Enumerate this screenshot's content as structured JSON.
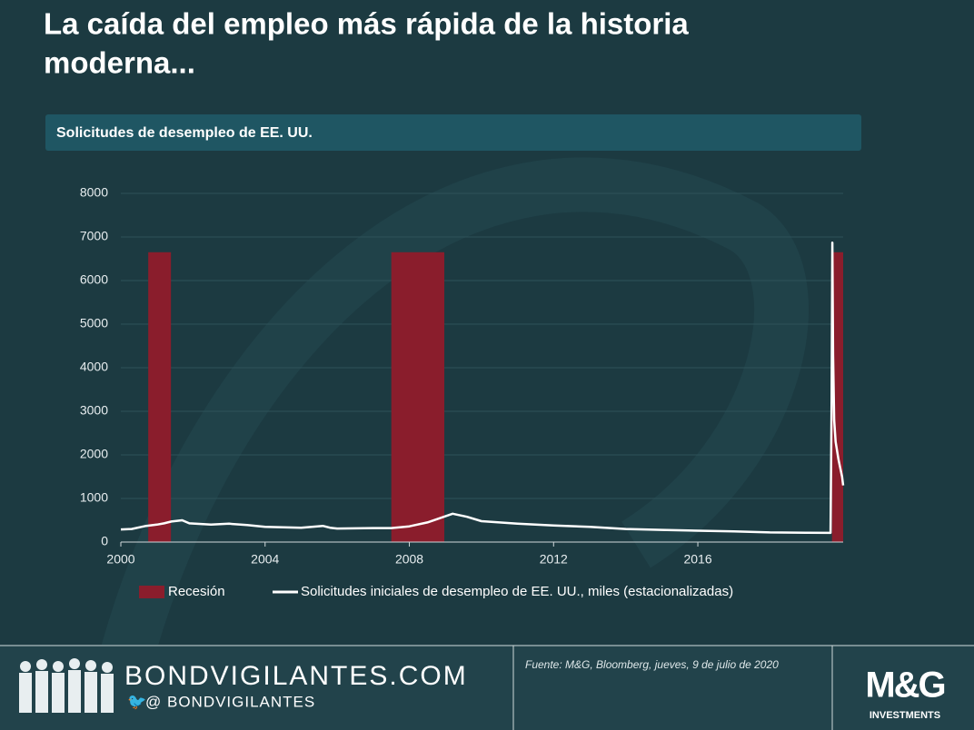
{
  "title": [
    "La caída del empleo más rápida de la historia",
    "moderna..."
  ],
  "chart_data": {
    "type": "line",
    "title": "Solicitudes  de desempleo de EE. UU.",
    "xlim": [
      2000,
      2020.03
    ],
    "xticks": [
      2000,
      2004,
      2008,
      2012,
      2016
    ],
    "ylim": [
      0,
      8000
    ],
    "yticks": [
      0,
      1000,
      2000,
      3000,
      4000,
      5000,
      6000,
      7000,
      8000
    ],
    "grid": true,
    "legend": "bottom",
    "bands": {
      "name": "Recesión",
      "color": "#8a1d2c",
      "value": 6650,
      "periods": [
        [
          2000.76,
          2001.39
        ],
        [
          2007.5,
          2008.97
        ],
        [
          2019.72,
          2020.03
        ]
      ]
    },
    "series": [
      {
        "name": "Solicitudes iniciales de desempleo de EE. UU., miles (estacionalizadas)",
        "color": "#ffffff",
        "x": [
          2000,
          2000.3,
          2000.7,
          2001,
          2001.2,
          2001.4,
          2001.7,
          2001.9,
          2002.5,
          2003,
          2003.5,
          2004,
          2005,
          2005.6,
          2005.8,
          2006,
          2007,
          2007.5,
          2008,
          2008.5,
          2009.2,
          2009.6,
          2010,
          2011,
          2012,
          2013,
          2014,
          2015,
          2016,
          2017,
          2018,
          2019,
          2019.68,
          2019.71,
          2019.73,
          2019.75,
          2019.78,
          2019.82,
          2019.9,
          2020,
          2020.03
        ],
        "values": [
          290,
          300,
          370,
          400,
          430,
          470,
          500,
          430,
          400,
          420,
          390,
          350,
          330,
          370,
          330,
          310,
          320,
          320,
          360,
          450,
          650,
          580,
          480,
          420,
          380,
          350,
          300,
          280,
          260,
          245,
          220,
          215,
          210,
          3300,
          6870,
          4300,
          2800,
          2300,
          1900,
          1500,
          1300
        ]
      }
    ]
  },
  "footer": {
    "site": "BONDVIGILANTES.COM",
    "handle": "@ BONDVIGILANTES",
    "source": "Fuente: M&G, Bloomberg, jueves, 9 de julio de 2020",
    "logo": "M&G",
    "logo_sub": "INVESTMENTS"
  }
}
